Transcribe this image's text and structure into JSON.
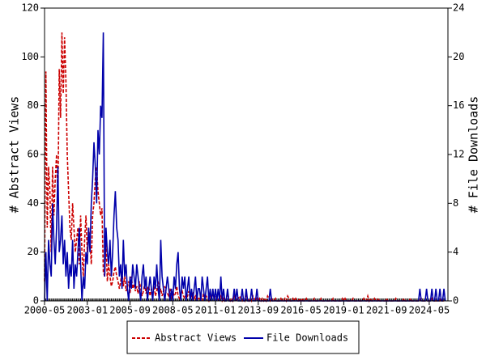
{
  "chart_data": {
    "type": "line",
    "y_label": "# Abstract Views",
    "y2_label": "# File Downloads",
    "xlim": [
      "2000-05",
      "2025-07"
    ],
    "xticks": [
      "2000-05",
      "2003-01",
      "2005-09",
      "2008-05",
      "2011-01",
      "2013-09",
      "2016-05",
      "2019-01",
      "2021-09",
      "2024-05"
    ],
    "ylim": [
      0,
      120
    ],
    "yticks": [
      0,
      20,
      40,
      60,
      80,
      100,
      120
    ],
    "y2lim": [
      0,
      24
    ],
    "y2ticks": [
      0,
      4,
      8,
      12,
      16,
      20,
      24
    ],
    "legend": "bottom",
    "x": [
      "2000-05",
      "2000-06",
      "2000-07",
      "2000-08",
      "2000-09",
      "2000-10",
      "2000-11",
      "2000-12",
      "2001-01",
      "2001-02",
      "2001-03",
      "2001-04",
      "2001-05",
      "2001-06",
      "2001-07",
      "2001-08",
      "2001-09",
      "2001-10",
      "2001-11",
      "2001-12",
      "2002-01",
      "2002-02",
      "2002-03",
      "2002-04",
      "2002-05",
      "2002-06",
      "2002-07",
      "2002-08",
      "2002-09",
      "2002-10",
      "2002-11",
      "2002-12",
      "2003-01",
      "2003-02",
      "2003-03",
      "2003-04",
      "2003-05",
      "2003-06",
      "2003-07",
      "2003-08",
      "2003-09",
      "2003-10",
      "2003-11",
      "2003-12",
      "2004-01",
      "2004-02",
      "2004-03",
      "2004-04",
      "2004-05",
      "2004-06",
      "2004-07",
      "2004-08",
      "2004-09",
      "2004-10",
      "2004-11",
      "2004-12",
      "2005-01",
      "2005-02",
      "2005-03",
      "2005-04",
      "2005-05",
      "2005-06",
      "2005-07",
      "2005-08",
      "2005-09",
      "2005-10",
      "2005-11",
      "2005-12",
      "2006-01",
      "2006-02",
      "2006-03",
      "2006-04",
      "2006-05",
      "2006-06",
      "2006-07",
      "2006-08",
      "2006-09",
      "2006-10",
      "2006-11",
      "2006-12",
      "2007-01",
      "2007-02",
      "2007-03",
      "2007-04",
      "2007-05",
      "2007-06",
      "2007-07",
      "2007-08",
      "2007-09",
      "2007-10",
      "2007-11",
      "2007-12",
      "2008-01",
      "2008-02",
      "2008-03",
      "2008-04",
      "2008-05",
      "2008-06",
      "2008-07",
      "2008-08",
      "2008-09",
      "2008-10",
      "2008-11",
      "2008-12",
      "2009-01",
      "2009-02",
      "2009-03",
      "2009-04",
      "2009-05",
      "2009-06",
      "2009-07",
      "2009-08",
      "2009-09",
      "2009-10",
      "2009-11",
      "2009-12",
      "2010-01",
      "2010-02",
      "2010-03",
      "2010-04",
      "2010-05",
      "2010-06",
      "2010-07",
      "2010-08",
      "2010-09",
      "2010-10",
      "2010-11",
      "2010-12",
      "2011-01",
      "2011-02",
      "2011-03",
      "2011-04",
      "2011-05",
      "2011-06",
      "2011-07",
      "2011-08",
      "2011-09",
      "2011-10",
      "2011-11",
      "2011-12",
      "2012-01",
      "2012-02",
      "2012-03",
      "2012-04",
      "2012-05",
      "2012-06",
      "2012-07",
      "2012-08",
      "2012-09",
      "2012-10",
      "2012-11",
      "2012-12",
      "2013-01",
      "2013-02",
      "2013-03",
      "2013-04",
      "2013-05",
      "2013-06",
      "2013-07",
      "2013-08",
      "2013-09",
      "2013-10",
      "2013-11",
      "2013-12",
      "2014-01",
      "2014-02",
      "2014-03",
      "2014-04",
      "2014-05",
      "2014-06",
      "2014-07",
      "2014-08",
      "2014-09",
      "2014-10",
      "2014-11",
      "2014-12",
      "2015-01",
      "2015-02",
      "2015-03",
      "2015-04",
      "2015-05",
      "2015-06",
      "2015-07",
      "2015-08",
      "2015-09",
      "2015-10",
      "2015-11",
      "2015-12",
      "2016-01",
      "2016-02",
      "2016-03",
      "2016-04",
      "2016-05",
      "2016-06",
      "2016-07",
      "2016-08",
      "2016-09",
      "2016-10",
      "2016-11",
      "2016-12",
      "2017-01",
      "2017-02",
      "2017-03",
      "2017-04",
      "2017-05",
      "2017-06",
      "2017-07",
      "2017-08",
      "2017-09",
      "2017-10",
      "2017-11",
      "2017-12",
      "2018-01",
      "2018-02",
      "2018-03",
      "2018-04",
      "2018-05",
      "2018-06",
      "2018-07",
      "2018-08",
      "2018-09",
      "2018-10",
      "2018-11",
      "2018-12",
      "2019-01",
      "2019-02",
      "2019-03",
      "2019-04",
      "2019-05",
      "2019-06",
      "2019-07",
      "2019-08",
      "2019-09",
      "2019-10",
      "2019-11",
      "2019-12",
      "2020-01",
      "2020-02",
      "2020-03",
      "2020-04",
      "2020-05",
      "2020-06",
      "2020-07",
      "2020-08",
      "2020-09",
      "2020-10",
      "2020-11",
      "2020-12",
      "2021-01",
      "2021-02",
      "2021-03",
      "2021-04",
      "2021-05",
      "2021-06",
      "2021-07",
      "2021-08",
      "2021-09",
      "2021-10",
      "2021-11",
      "2021-12",
      "2022-01",
      "2022-02",
      "2022-03",
      "2022-04",
      "2022-05",
      "2022-06",
      "2022-07",
      "2022-08",
      "2022-09",
      "2022-10",
      "2022-11",
      "2022-12",
      "2023-01",
      "2023-02",
      "2023-03",
      "2023-04",
      "2023-05",
      "2023-06",
      "2023-07",
      "2023-08",
      "2023-09",
      "2023-10",
      "2023-11",
      "2023-12",
      "2024-01",
      "2024-02",
      "2024-03",
      "2024-04",
      "2024-05",
      "2024-06",
      "2024-07",
      "2024-08",
      "2024-09",
      "2024-10",
      "2024-11",
      "2024-12",
      "2025-01",
      "2025-02",
      "2025-03",
      "2025-04",
      "2025-05"
    ],
    "series": [
      {
        "name": "Abstract Views",
        "color": "#cc0000",
        "dash": true,
        "values": [
          8,
          94,
          30,
          55,
          45,
          20,
          55,
          35,
          50,
          60,
          40,
          95,
          75,
          110,
          85,
          108,
          90,
          60,
          45,
          30,
          25,
          40,
          30,
          20,
          25,
          30,
          15,
          35,
          20,
          10,
          25,
          35,
          20,
          30,
          25,
          15,
          35,
          40,
          50,
          55,
          45,
          40,
          35,
          38,
          12,
          10,
          25,
          8,
          15,
          10,
          6,
          8,
          12,
          14,
          10,
          8,
          5,
          8,
          12,
          6,
          10,
          4,
          6,
          8,
          3,
          10,
          5,
          7,
          4,
          6,
          3,
          8,
          5,
          2,
          4,
          7,
          3,
          5,
          6,
          2,
          5,
          3,
          6,
          2,
          4,
          8,
          3,
          5,
          2,
          4,
          6,
          3,
          3,
          2,
          5,
          1,
          4,
          2,
          3,
          6,
          2,
          1,
          3,
          4,
          2,
          1,
          3,
          2,
          4,
          1,
          2,
          3,
          1,
          2,
          0,
          1,
          1,
          2,
          0,
          3,
          1,
          2,
          1,
          0,
          2,
          1,
          3,
          1,
          2,
          1,
          0,
          1,
          2,
          0,
          1,
          0,
          1,
          3,
          1,
          0,
          1,
          0,
          2,
          1,
          0,
          1,
          2,
          1,
          0,
          1,
          0,
          2,
          1,
          0,
          1,
          0,
          2,
          1,
          0,
          1,
          0,
          1,
          0,
          1,
          0,
          1,
          0,
          2,
          1,
          0,
          1,
          0,
          0,
          1,
          0,
          0,
          0,
          1,
          0,
          0,
          1,
          0,
          2,
          1,
          0,
          0,
          1,
          0,
          1,
          0,
          0,
          1,
          0,
          1,
          0,
          0,
          1,
          0,
          0,
          0,
          0,
          0,
          1,
          0,
          0,
          0,
          0,
          1,
          0,
          0,
          0,
          0,
          0,
          0,
          0,
          0,
          1,
          0,
          0,
          0,
          0,
          0,
          0,
          1,
          0,
          1,
          0,
          0,
          0,
          0,
          0,
          1,
          0,
          0,
          0,
          0,
          0,
          0,
          0,
          1,
          0,
          0,
          2,
          0,
          1,
          0,
          0,
          1,
          0,
          0,
          1,
          0,
          0,
          0,
          0,
          0,
          1,
          0,
          0,
          0,
          0,
          0,
          0,
          1,
          0,
          0,
          0,
          0,
          0,
          1,
          0,
          0,
          0,
          0,
          1,
          0,
          0,
          0,
          0,
          0,
          0,
          0,
          1,
          0,
          0,
          0,
          0,
          0,
          0,
          0,
          1,
          0,
          0,
          0,
          0,
          0,
          0,
          1,
          0,
          0,
          0
        ]
      },
      {
        "name": "File Downloads",
        "color": "#0000aa",
        "dash": false,
        "axis": "y2",
        "values": [
          0,
          4,
          0,
          5,
          3,
          2,
          8,
          5,
          3,
          6,
          11,
          4,
          5,
          7,
          3,
          5,
          2,
          4,
          1,
          3,
          2,
          5,
          1,
          3,
          2,
          4,
          6,
          3,
          0,
          2,
          1,
          4,
          3,
          6,
          4,
          8,
          10,
          13,
          11,
          8,
          14,
          12,
          16,
          15,
          22,
          2,
          6,
          4,
          3,
          5,
          2,
          4,
          7,
          9,
          6,
          5,
          2,
          3,
          1,
          5,
          2,
          3,
          1,
          0,
          2,
          1,
          3,
          2,
          1,
          3,
          2,
          1,
          0,
          2,
          3,
          1,
          2,
          0,
          1,
          2,
          1,
          0,
          2,
          1,
          3,
          1,
          0,
          5,
          2,
          1,
          0,
          1,
          2,
          1,
          0,
          1,
          0,
          2,
          1,
          3,
          4,
          1,
          0,
          2,
          1,
          2,
          0,
          1,
          2,
          0,
          1,
          0,
          1,
          2,
          0,
          1,
          1,
          0,
          2,
          1,
          0,
          1,
          2,
          0,
          1,
          0,
          1,
          0,
          1,
          0,
          1,
          0,
          2,
          0,
          1,
          0,
          0,
          1,
          0,
          0,
          0,
          0,
          1,
          0,
          1,
          0,
          0,
          0,
          1,
          0,
          0,
          1,
          0,
          0,
          0,
          1,
          0,
          0,
          0,
          1,
          0,
          0,
          0,
          0,
          0,
          0,
          0,
          0,
          0,
          1,
          0,
          0,
          0,
          0,
          0,
          0,
          0,
          0,
          0,
          0,
          0,
          0,
          0,
          0,
          0,
          0,
          0,
          0,
          0,
          0,
          0,
          0,
          0,
          0,
          0,
          0,
          0,
          0,
          0,
          0,
          0,
          0,
          0,
          0,
          0,
          0,
          0,
          0,
          0,
          0,
          0,
          0,
          0,
          0,
          0,
          0,
          0,
          0,
          0,
          0,
          0,
          0,
          0,
          0,
          0,
          0,
          0,
          0,
          0,
          0,
          0,
          0,
          0,
          0,
          0,
          0,
          0,
          0,
          0,
          0,
          0,
          0,
          0,
          0,
          0,
          0,
          0,
          0,
          0,
          0,
          0,
          0,
          0,
          0,
          0,
          0,
          0,
          0,
          0,
          0,
          0,
          0,
          0,
          0,
          0,
          0,
          0,
          0,
          0,
          0,
          0,
          0,
          0,
          0,
          0,
          0,
          0,
          0,
          0,
          0,
          0,
          1,
          0,
          0,
          0,
          0,
          1,
          0,
          0,
          0,
          1,
          0,
          0,
          1,
          0,
          0,
          1,
          0,
          0,
          1,
          0
        ]
      }
    ]
  }
}
